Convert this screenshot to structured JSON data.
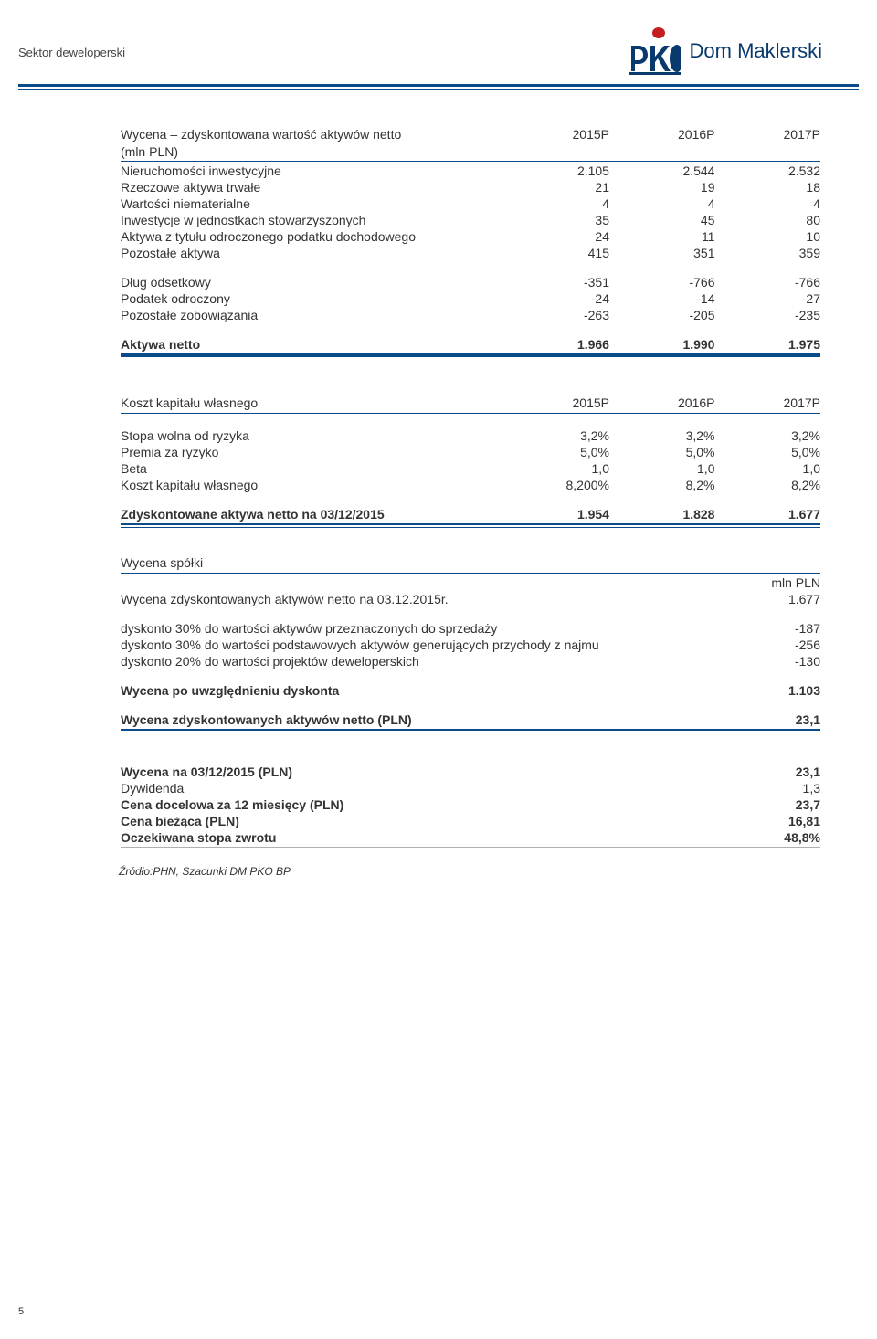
{
  "header": {
    "section": "Sektor deweloperski",
    "brand": "Dom Maklerski"
  },
  "t1": {
    "title": "Wycena – zdyskontowana wartość aktywów netto",
    "subtitle": "(mln PLN)",
    "cols": [
      "2015P",
      "2016P",
      "2017P"
    ],
    "rows": [
      {
        "l": "Nieruchomości inwestycyjne",
        "v": [
          "2.105",
          "2.544",
          "2.532"
        ]
      },
      {
        "l": "Rzeczowe aktywa trwałe",
        "v": [
          "21",
          "19",
          "18"
        ]
      },
      {
        "l": "Wartości niematerialne",
        "v": [
          "4",
          "4",
          "4"
        ]
      },
      {
        "l": "Inwestycje w jednostkach stowarzyszonych",
        "v": [
          "35",
          "45",
          "80"
        ]
      },
      {
        "l": "Aktywa z tytułu odroczonego podatku dochodowego",
        "v": [
          "24",
          "11",
          "10"
        ]
      },
      {
        "l": "Pozostałe aktywa",
        "v": [
          "415",
          "351",
          "359"
        ]
      }
    ],
    "rows2": [
      {
        "l": "Dług odsetkowy",
        "v": [
          "-351",
          "-766",
          "-766"
        ]
      },
      {
        "l": "Podatek odroczony",
        "v": [
          "-24",
          "-14",
          "-27"
        ]
      },
      {
        "l": "Pozostałe zobowiązania",
        "v": [
          "-263",
          "-205",
          "-235"
        ]
      }
    ],
    "net": {
      "l": "Aktywa netto",
      "v": [
        "1.966",
        "1.990",
        "1.975"
      ]
    }
  },
  "t2": {
    "title": "Koszt kapitału własnego",
    "cols": [
      "2015P",
      "2016P",
      "2017P"
    ],
    "rows": [
      {
        "l": "Stopa wolna od ryzyka",
        "v": [
          "3,2%",
          "3,2%",
          "3,2%"
        ]
      },
      {
        "l": "Premia za ryzyko",
        "v": [
          "5,0%",
          "5,0%",
          "5,0%"
        ]
      },
      {
        "l": "Beta",
        "v": [
          "1,0",
          "1,0",
          "1,0"
        ]
      },
      {
        "l": "Koszt kapitału własnego",
        "v": [
          "8,200%",
          "8,2%",
          "8,2%"
        ]
      }
    ],
    "disc": {
      "l": "Zdyskontowane aktywa netto na 03/12/2015",
      "v": [
        "1.954",
        "1.828",
        "1.677"
      ]
    }
  },
  "t3": {
    "title": "Wycena spółki",
    "unit": "mln PLN",
    "r1": {
      "l": "Wycena zdyskontowanych aktywów netto na 03.12.2015r.",
      "v": "1.677"
    },
    "r2": {
      "l": "dyskonto 30% do wartości aktywów przeznaczonych do sprzedaży",
      "v": "-187"
    },
    "r3": {
      "l": "dyskonto 30% do wartości podstawowych aktywów generujących przychody z najmu",
      "v": "-256"
    },
    "r4": {
      "l": "dyskonto 20% do wartości projektów deweloperskich",
      "v": "-130"
    },
    "r5": {
      "l": "Wycena po uwzględnieniu dyskonta",
      "v": "1.103"
    },
    "r6": {
      "l": "Wycena zdyskontowanych aktywów netto (PLN)",
      "v": "23,1"
    }
  },
  "t4": {
    "rows": [
      {
        "l": "Wycena na 03/12/2015 (PLN)",
        "v": "23,1",
        "b": true
      },
      {
        "l": "Dywidenda",
        "v": "1,3",
        "b": false
      },
      {
        "l": "Cena docelowa za 12 miesięcy (PLN)",
        "v": "23,7",
        "b": true
      },
      {
        "l": "Cena bieżąca (PLN)",
        "v": "16,81",
        "b": true
      },
      {
        "l": "Oczekiwana stopa zwrotu",
        "v": "48,8%",
        "b": true
      }
    ]
  },
  "source": "Źródło:PHN, Szacunki DM PKO BP",
  "page": "5"
}
